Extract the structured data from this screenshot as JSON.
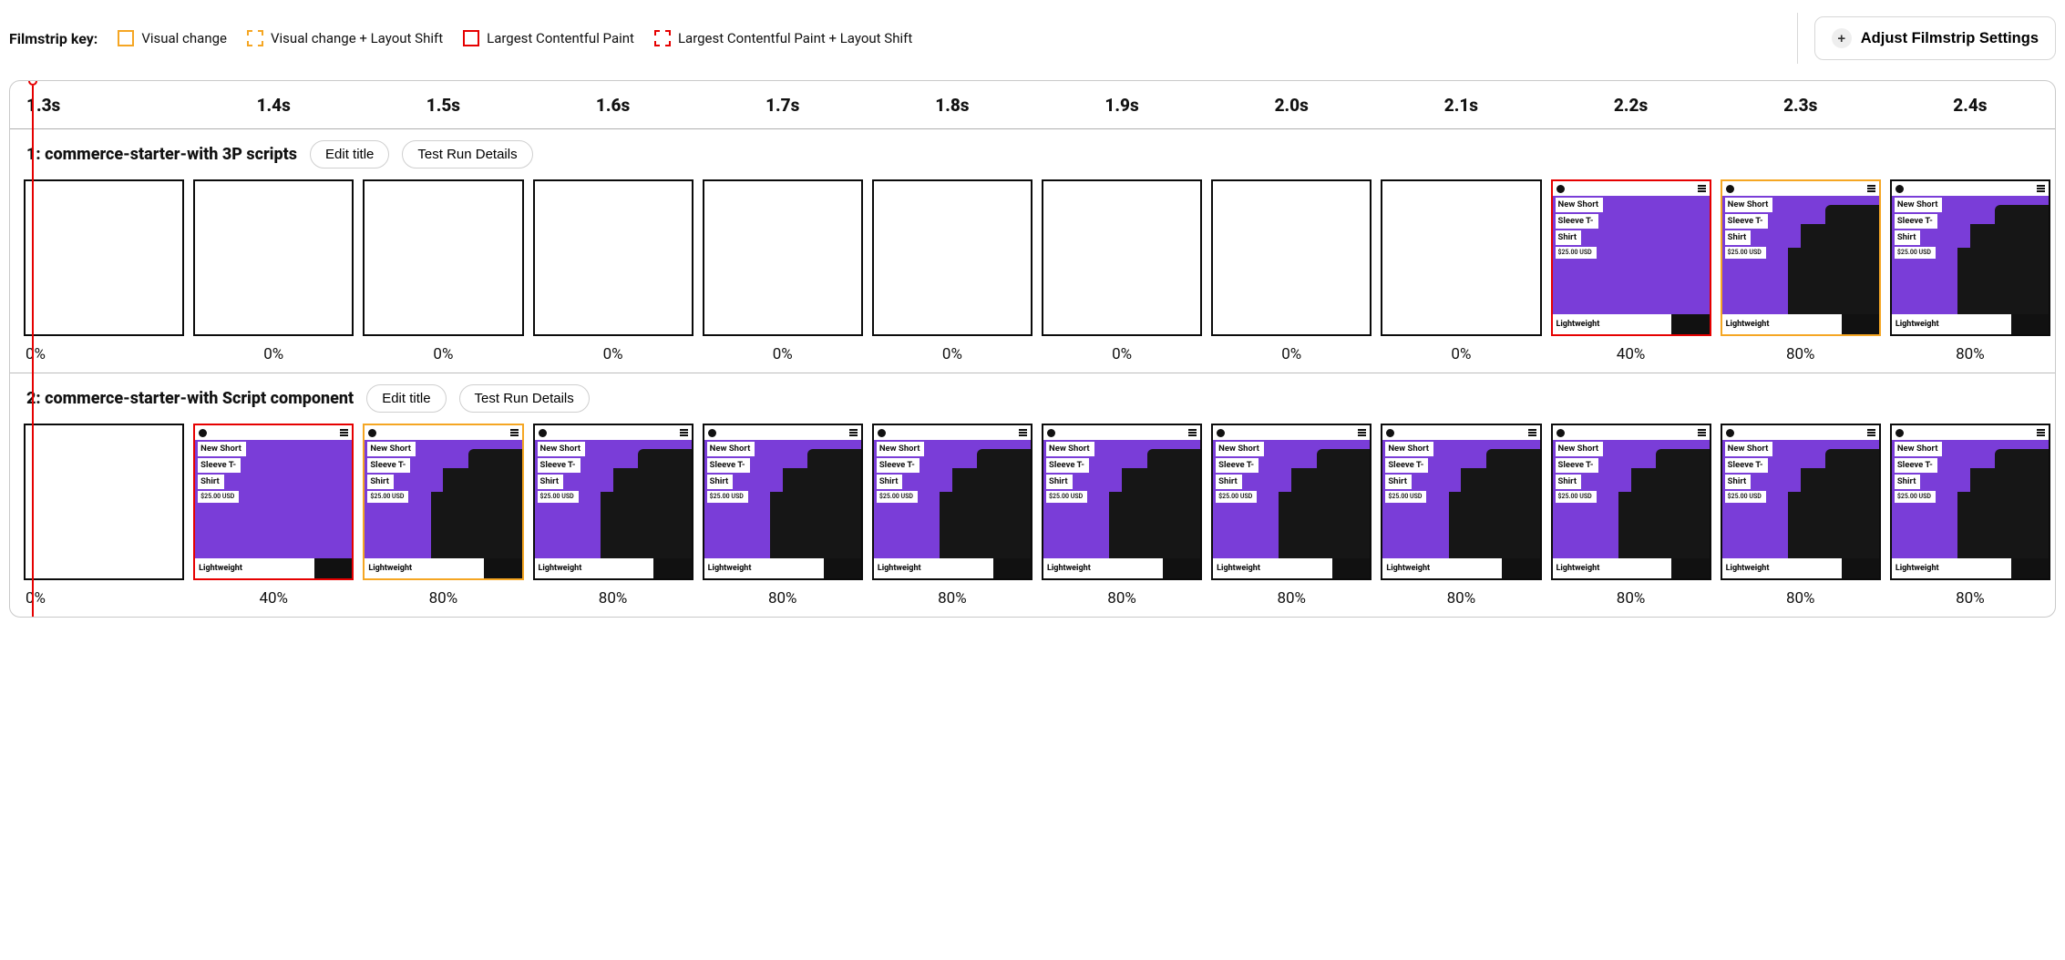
{
  "colors": {
    "orange": "#f5a623",
    "red": "#e60000",
    "black": "#0b0b0b",
    "purple": "#7a3dd8"
  },
  "legend": {
    "title": "Filmstrip key:",
    "items": [
      {
        "label": "Visual change",
        "color": "orange",
        "dashed": false
      },
      {
        "label": "Visual change + Layout Shift",
        "color": "orange",
        "dashed": true
      },
      {
        "label": "Largest Contentful Paint",
        "color": "red",
        "dashed": false
      },
      {
        "label": "Largest Contentful Paint + Layout Shift",
        "color": "red",
        "dashed": true
      }
    ]
  },
  "settings_button": "Adjust Filmstrip Settings",
  "time_labels": [
    "1.3s",
    "1.4s",
    "1.5s",
    "1.6s",
    "1.7s",
    "1.8s",
    "1.9s",
    "2.0s",
    "2.1s",
    "2.2s",
    "2.3s",
    "2.4s"
  ],
  "product_card": {
    "title_lines": [
      "New Short",
      "Sleeve T-",
      "Shirt"
    ],
    "price": "$25.00 USD",
    "tag": "Lightweight"
  },
  "runs": [
    {
      "title": "1: commerce-starter-with 3P scripts",
      "edit_label": "Edit title",
      "details_label": "Test Run Details",
      "frames": [
        {
          "pct": "0%",
          "content": false,
          "border": "black"
        },
        {
          "pct": "0%",
          "content": false,
          "border": "black"
        },
        {
          "pct": "0%",
          "content": false,
          "border": "black"
        },
        {
          "pct": "0%",
          "content": false,
          "border": "black"
        },
        {
          "pct": "0%",
          "content": false,
          "border": "black"
        },
        {
          "pct": "0%",
          "content": false,
          "border": "black"
        },
        {
          "pct": "0%",
          "content": false,
          "border": "black"
        },
        {
          "pct": "0%",
          "content": false,
          "border": "black"
        },
        {
          "pct": "0%",
          "content": false,
          "border": "black"
        },
        {
          "pct": "40%",
          "content": true,
          "stage": "partial",
          "border": "red"
        },
        {
          "pct": "80%",
          "content": true,
          "stage": "full",
          "border": "orange"
        },
        {
          "pct": "80%",
          "content": true,
          "stage": "full",
          "border": "black"
        }
      ]
    },
    {
      "title": "2: commerce-starter-with Script component",
      "edit_label": "Edit title",
      "details_label": "Test Run Details",
      "frames": [
        {
          "pct": "0%",
          "content": false,
          "border": "black"
        },
        {
          "pct": "40%",
          "content": true,
          "stage": "partial",
          "border": "red"
        },
        {
          "pct": "80%",
          "content": true,
          "stage": "full",
          "border": "orange"
        },
        {
          "pct": "80%",
          "content": true,
          "stage": "full",
          "border": "black"
        },
        {
          "pct": "80%",
          "content": true,
          "stage": "full",
          "border": "black"
        },
        {
          "pct": "80%",
          "content": true,
          "stage": "full",
          "border": "black"
        },
        {
          "pct": "80%",
          "content": true,
          "stage": "full",
          "border": "black"
        },
        {
          "pct": "80%",
          "content": true,
          "stage": "full",
          "border": "black"
        },
        {
          "pct": "80%",
          "content": true,
          "stage": "full",
          "border": "black"
        },
        {
          "pct": "80%",
          "content": true,
          "stage": "full",
          "border": "black"
        },
        {
          "pct": "80%",
          "content": true,
          "stage": "full",
          "border": "black"
        },
        {
          "pct": "80%",
          "content": true,
          "stage": "full",
          "border": "black"
        }
      ]
    }
  ]
}
